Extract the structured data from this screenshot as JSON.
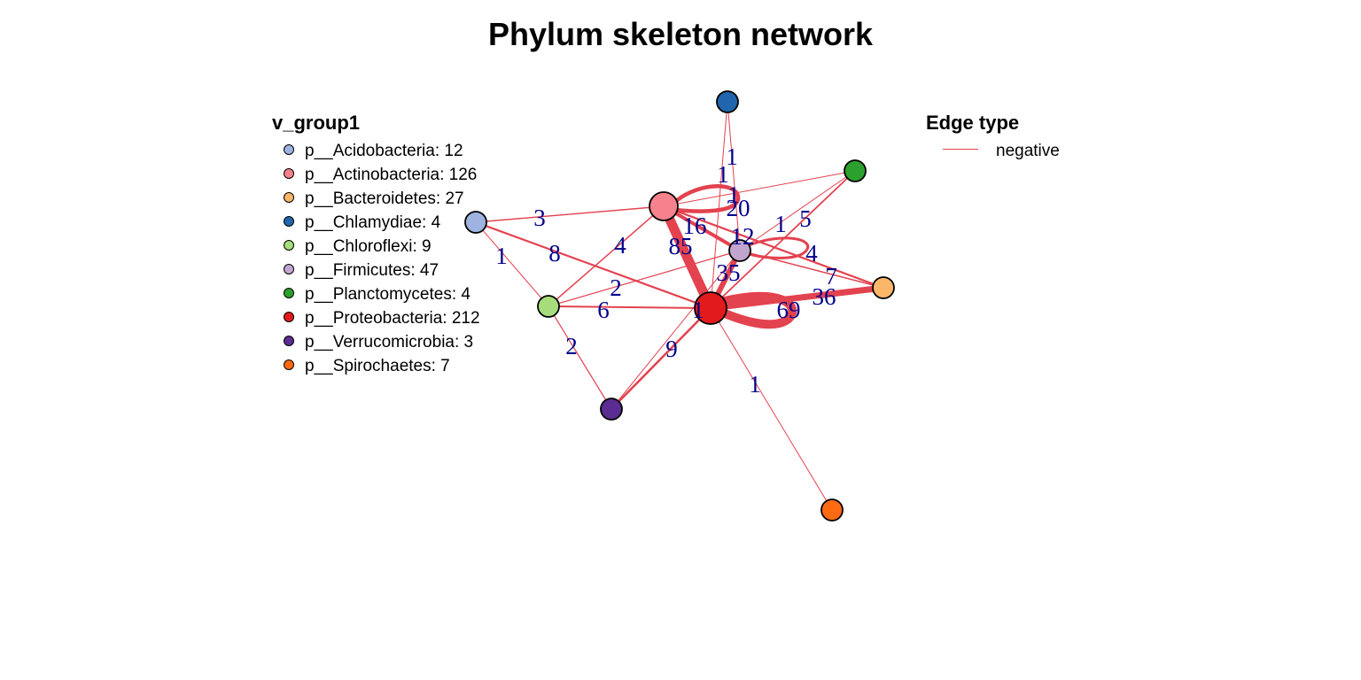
{
  "title": "Phylum skeleton network",
  "colors": {
    "edge": "#e3424f",
    "label": "#00008b"
  },
  "legend_nodes": {
    "title": "v_group1",
    "items": [
      {
        "label": "p__Acidobacteria: 12",
        "color": "#9eb3e0"
      },
      {
        "label": "p__Actinobacteria: 126",
        "color": "#f5828c"
      },
      {
        "label": "p__Bacteroidetes: 27",
        "color": "#fbb66a"
      },
      {
        "label": "p__Chlamydiae: 4",
        "color": "#2166ac"
      },
      {
        "label": "p__Chloroflexi: 9",
        "color": "#a6dc7b"
      },
      {
        "label": "p__Firmicutes: 47",
        "color": "#c2a5cf"
      },
      {
        "label": "p__Planctomycetes: 4",
        "color": "#2ca02c"
      },
      {
        "label": "p__Proteobacteria: 212",
        "color": "#e31a1c"
      },
      {
        "label": "p__Verrucomicrobia: 3",
        "color": "#5b2c91"
      },
      {
        "label": "p__Spirochaetes: 7",
        "color": "#ff6a13"
      }
    ]
  },
  "legend_edges": {
    "title": "Edge type",
    "items": [
      {
        "label": "negative"
      }
    ]
  },
  "network": {
    "nodes": [
      {
        "id": "Acidobacteria",
        "size": 12
      },
      {
        "id": "Actinobacteria",
        "size": 126
      },
      {
        "id": "Bacteroidetes",
        "size": 27
      },
      {
        "id": "Chlamydiae",
        "size": 4
      },
      {
        "id": "Chloroflexi",
        "size": 9
      },
      {
        "id": "Firmicutes",
        "size": 47
      },
      {
        "id": "Planctomycetes",
        "size": 4
      },
      {
        "id": "Proteobacteria",
        "size": 212
      },
      {
        "id": "Verrucomicrobia",
        "size": 3
      },
      {
        "id": "Spirochaetes",
        "size": 7
      }
    ],
    "edges": [
      {
        "from": "Actinobacteria",
        "to": "Proteobacteria",
        "weight": "85"
      },
      {
        "from": "Proteobacteria",
        "to": "Proteobacteria",
        "weight": "69"
      },
      {
        "from": "Proteobacteria",
        "to": "Bacteroidetes",
        "weight": "36"
      },
      {
        "from": "Proteobacteria",
        "to": "Firmicutes",
        "weight": "35"
      },
      {
        "from": "Actinobacteria",
        "to": "Actinobacteria",
        "weight": "20"
      },
      {
        "from": "Actinobacteria",
        "to": "Firmicutes",
        "weight": "16"
      },
      {
        "from": "Firmicutes",
        "to": "Firmicutes",
        "weight": "12"
      },
      {
        "from": "Proteobacteria",
        "to": "Verrucomicrobia",
        "weight": "9"
      },
      {
        "from": "Acidobacteria",
        "to": "Proteobacteria",
        "weight": "8"
      },
      {
        "from": "Actinobacteria",
        "to": "Bacteroidetes",
        "weight": "7"
      },
      {
        "from": "Proteobacteria",
        "to": "Chloroflexi",
        "weight": "6"
      },
      {
        "from": "Planctomycetes",
        "to": "Proteobacteria",
        "weight": "5"
      },
      {
        "from": "Actinobacteria",
        "to": "Chloroflexi",
        "weight": "4"
      },
      {
        "from": "Firmicutes",
        "to": "Bacteroidetes",
        "weight": "4"
      },
      {
        "from": "Acidobacteria",
        "to": "Actinobacteria",
        "weight": "3"
      },
      {
        "from": "Chloroflexi",
        "to": "Firmicutes",
        "weight": "2"
      },
      {
        "from": "Chloroflexi",
        "to": "Verrucomicrobia",
        "weight": "2"
      },
      {
        "from": "Chlamydiae",
        "to": "Proteobacteria",
        "weight": "1"
      },
      {
        "from": "Chlamydiae",
        "to": "Firmicutes",
        "weight": "1"
      },
      {
        "from": "Actinobacteria",
        "to": "Planctomycetes",
        "weight": "1"
      },
      {
        "from": "Firmicutes",
        "to": "Planctomycetes",
        "weight": "1"
      },
      {
        "from": "Acidobacteria",
        "to": "Chloroflexi",
        "weight": "1"
      },
      {
        "from": "Proteobacteria",
        "to": "Spirochaetes",
        "weight": "1"
      },
      {
        "from": "Firmicutes",
        "to": "Verrucomicrobia",
        "weight": "1"
      }
    ]
  }
}
